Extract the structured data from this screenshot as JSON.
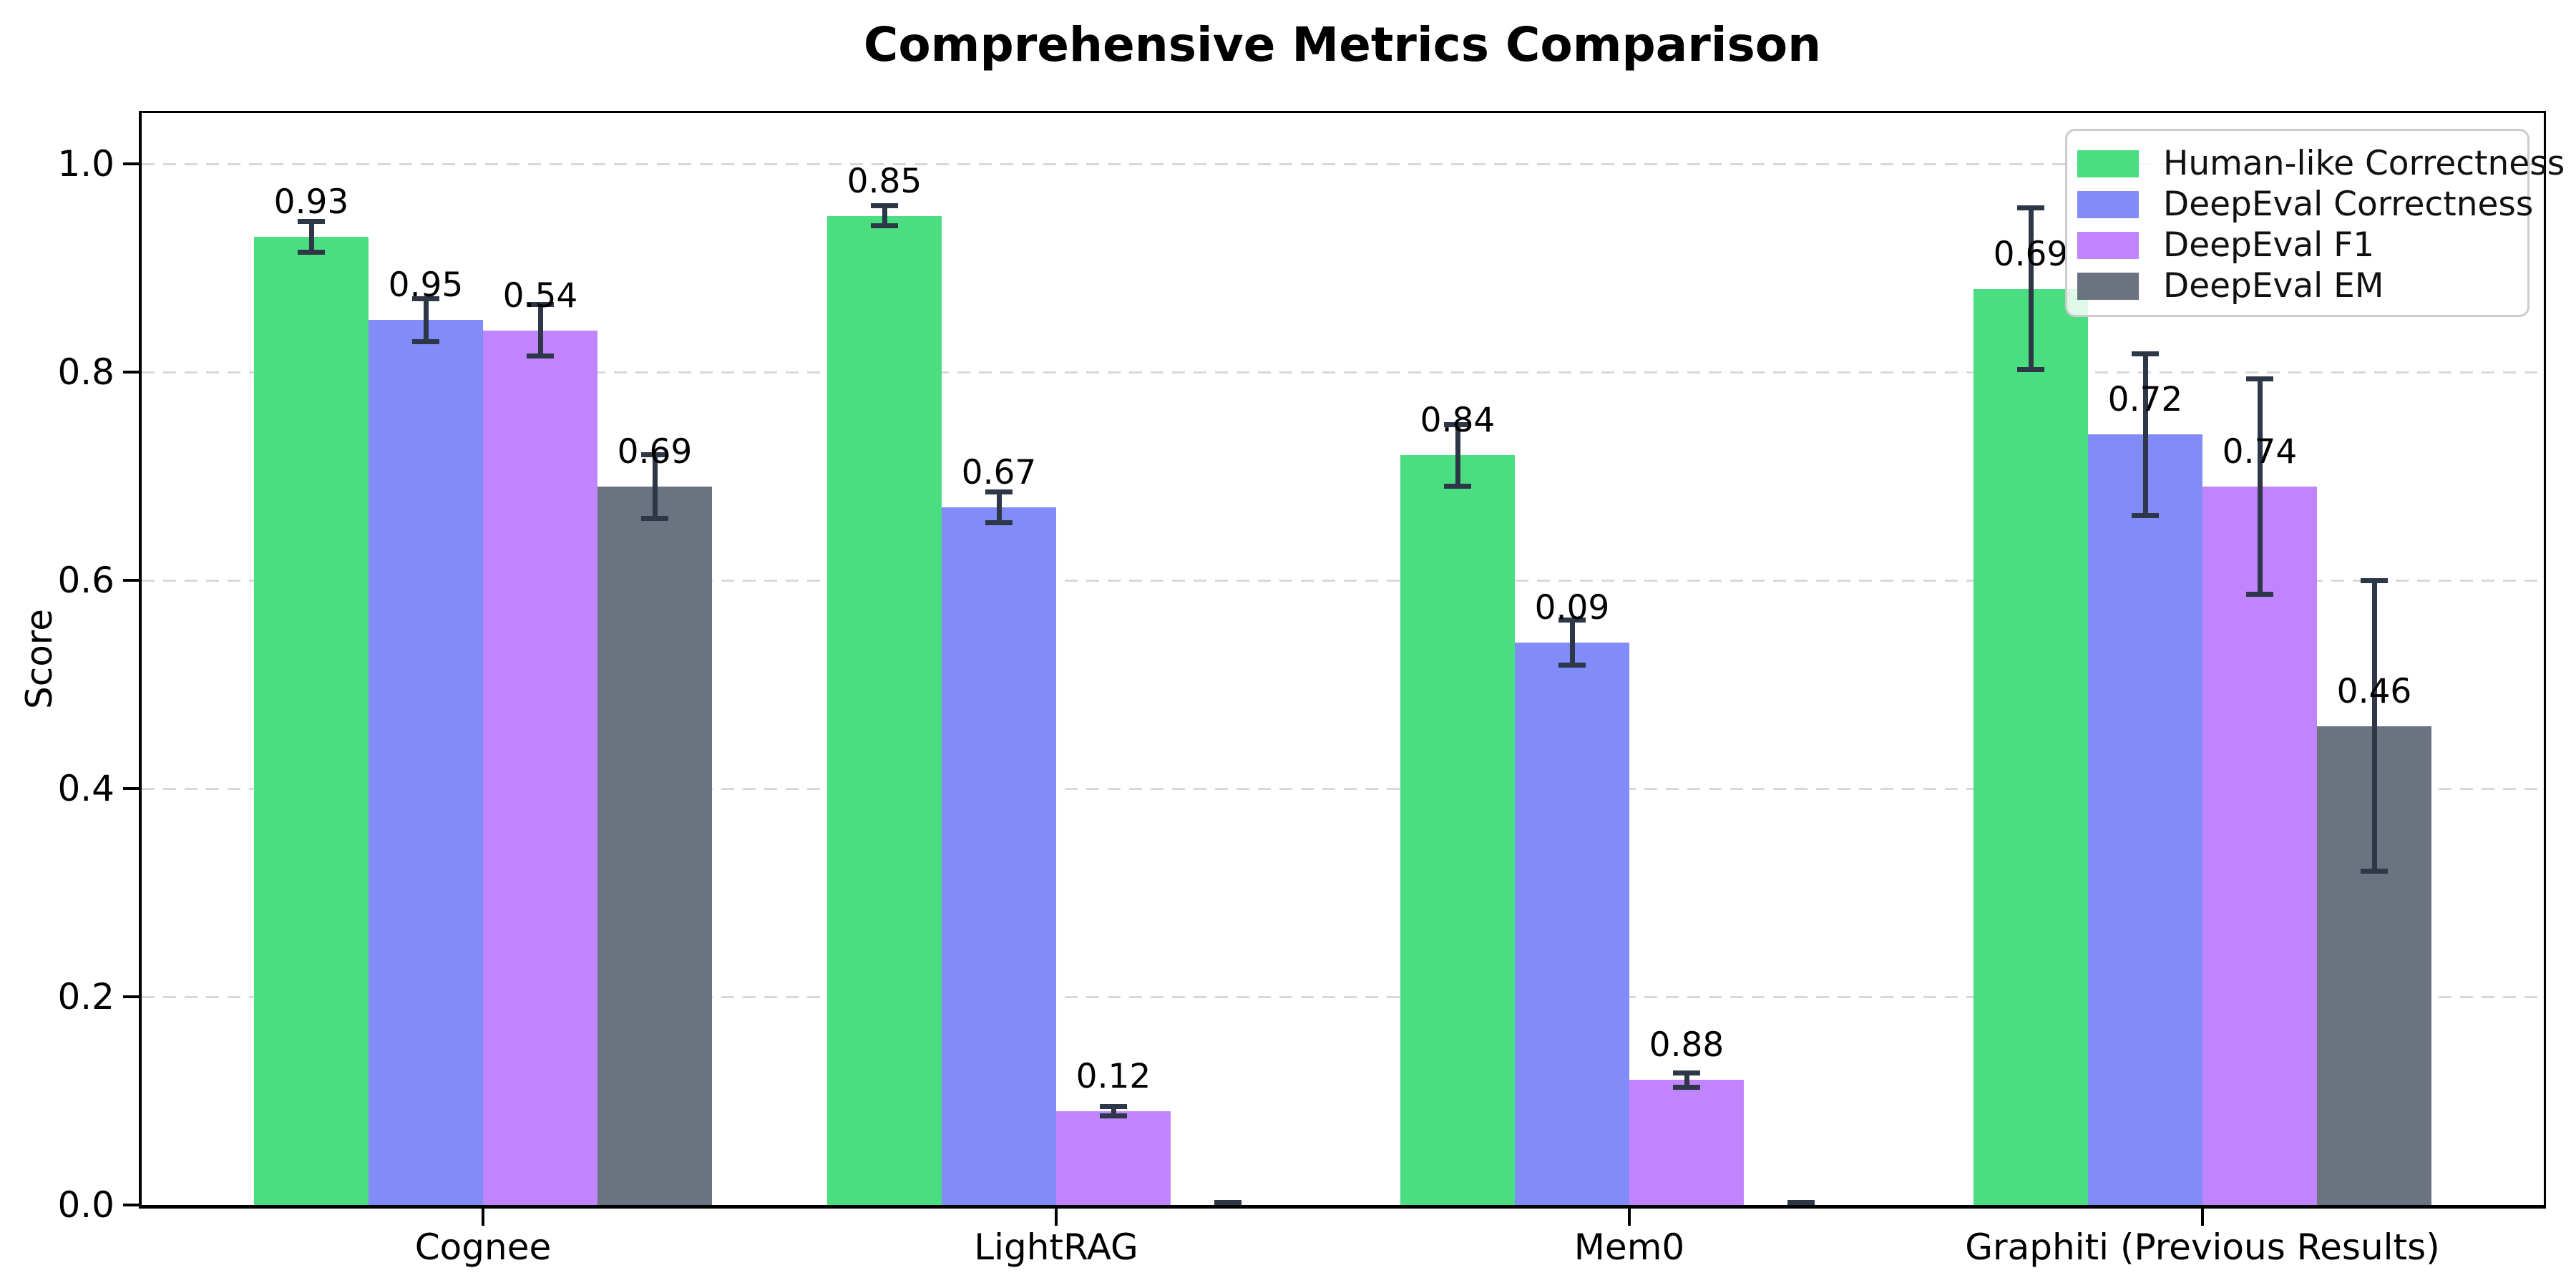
{
  "title": "Comprehensive Metrics Comparison",
  "ylabel": "Score",
  "chart_data": {
    "type": "bar",
    "title": "Comprehensive Metrics Comparison",
    "xlabel": "",
    "ylabel": "Score",
    "categories": [
      "Cognee",
      "LightRAG",
      "Mem0",
      "Graphiti (Previous Results)"
    ],
    "series": [
      {
        "name": "Human-like Correctness",
        "color": "#4ade80",
        "values": [
          0.93,
          0.95,
          0.72,
          0.88
        ],
        "errors": [
          0.015,
          0.01,
          0.03,
          0.078
        ]
      },
      {
        "name": "DeepEval Correctness",
        "color": "#818cf8",
        "values": [
          0.85,
          0.67,
          0.54,
          0.74
        ],
        "errors": [
          0.021,
          0.015,
          0.022,
          0.078
        ]
      },
      {
        "name": "DeepEval F1",
        "color": "#c084fc",
        "values": [
          0.84,
          0.09,
          0.12,
          0.69
        ],
        "errors": [
          0.025,
          0.005,
          0.007,
          0.104
        ]
      },
      {
        "name": "DeepEval EM",
        "color": "#6b7280",
        "values": [
          0.69,
          0.0,
          0.0,
          0.46
        ],
        "errors": [
          0.031,
          0.0,
          0.0,
          0.14
        ]
      }
    ],
    "bar_value_labels": [
      "0.93",
      "0.85",
      "0.84",
      "0.69",
      "0.95",
      "0.67",
      "0.09",
      "0.72",
      "0.54",
      "0.12",
      "0.88",
      "0.74",
      "0.69",
      "0.46"
    ],
    "yticks": [
      "0.0",
      "0.2",
      "0.4",
      "0.6",
      "0.8",
      "1.0"
    ],
    "ytick_values": [
      0.0,
      0.2,
      0.4,
      0.6,
      0.8,
      1.0
    ],
    "ylim": [
      0.0,
      1.05
    ],
    "grid": "horizontal dashed",
    "grid_color": "#d9d9d9",
    "error_bar_color": "#2d3748",
    "legend_position": "upper right",
    "value_label_format": "2 decimals, zero bars unlabeled"
  }
}
